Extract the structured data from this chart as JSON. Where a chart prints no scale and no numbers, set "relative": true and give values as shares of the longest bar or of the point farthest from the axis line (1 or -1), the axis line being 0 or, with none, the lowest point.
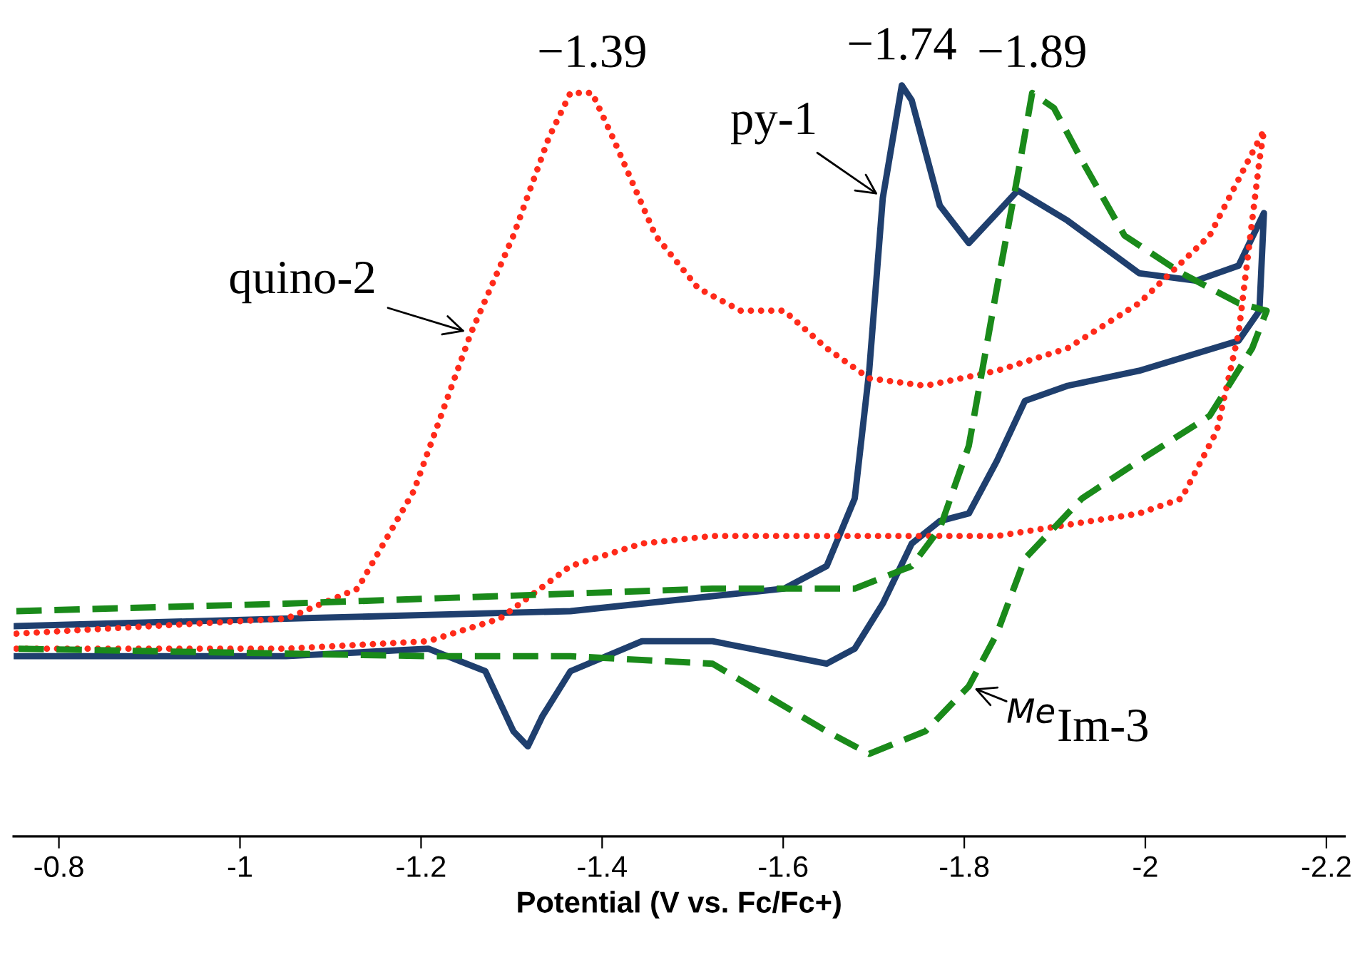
{
  "chart_data": {
    "type": "line",
    "relative": true,
    "xlabel": "Potential (V vs. Fc/Fc+)",
    "xlim": [
      -0.75,
      -2.22
    ],
    "xticks": [
      -0.8,
      -1,
      -1.2,
      -1.4,
      -1.6,
      -1.8,
      -2,
      -2.2
    ],
    "tick_labels": "x",
    "grid": false,
    "legend": false,
    "marker": "none",
    "series": [
      {
        "name": "py-1",
        "color": "#1f3f6e",
        "line_style": "solid",
        "x": [
          -0.753,
          -1.051,
          -1.365,
          -1.601,
          -1.648,
          -1.679,
          -1.695,
          -1.71,
          -1.731,
          -1.742,
          -1.773,
          -1.805,
          -1.836,
          -1.859,
          -1.914,
          -1.993,
          -2.056,
          -2.103,
          -2.131,
          -2.126,
          -2.103,
          -1.993,
          -1.914,
          -1.867,
          -1.836,
          -1.805,
          -1.773,
          -1.742,
          -1.71,
          -1.679,
          -1.648,
          -1.522,
          -1.444,
          -1.365,
          -1.334,
          -1.318,
          -1.302,
          -1.271,
          -1.208,
          -1.051,
          -0.753
        ],
        "values": [
          0.28,
          0.29,
          0.3,
          0.33,
          0.36,
          0.45,
          0.62,
          0.85,
          1.0,
          0.98,
          0.84,
          0.79,
          0.83,
          0.86,
          0.82,
          0.75,
          0.74,
          0.76,
          0.83,
          0.7,
          0.66,
          0.62,
          0.6,
          0.58,
          0.5,
          0.43,
          0.42,
          0.39,
          0.31,
          0.25,
          0.23,
          0.26,
          0.26,
          0.22,
          0.16,
          0.12,
          0.14,
          0.22,
          0.25,
          0.24,
          0.24
        ]
      },
      {
        "name": "quino-2",
        "color": "#ff2a1a",
        "line_style": "dotted",
        "x": [
          -0.753,
          -1.051,
          -1.13,
          -1.192,
          -1.255,
          -1.302,
          -1.341,
          -1.365,
          -1.389,
          -1.412,
          -1.459,
          -1.506,
          -1.553,
          -1.601,
          -1.648,
          -1.695,
          -1.757,
          -1.836,
          -1.914,
          -1.993,
          -2.071,
          -2.118,
          -2.131,
          -2.126,
          -2.103,
          -2.079,
          -2.04,
          -1.993,
          -1.836,
          -1.679,
          -1.522,
          -1.444,
          -1.365,
          -1.287,
          -1.208,
          -1.051,
          -0.753
        ],
        "values": [
          0.27,
          0.29,
          0.33,
          0.46,
          0.67,
          0.8,
          0.93,
          0.99,
          0.99,
          0.93,
          0.8,
          0.73,
          0.7,
          0.7,
          0.65,
          0.61,
          0.6,
          0.62,
          0.65,
          0.71,
          0.8,
          0.91,
          0.94,
          0.9,
          0.67,
          0.54,
          0.45,
          0.43,
          0.4,
          0.4,
          0.4,
          0.39,
          0.36,
          0.29,
          0.26,
          0.25,
          0.25
        ]
      },
      {
        "name": "$^{Me}$Im-3",
        "color": "#1a8a1a",
        "line_style": "dashed",
        "x": [
          -0.753,
          -1.051,
          -1.522,
          -1.679,
          -1.742,
          -1.773,
          -1.805,
          -1.836,
          -1.859,
          -1.875,
          -1.899,
          -1.93,
          -1.977,
          -2.04,
          -2.103,
          -2.134,
          -2.118,
          -2.071,
          -1.993,
          -1.93,
          -1.867,
          -1.836,
          -1.805,
          -1.757,
          -1.695,
          -1.648,
          -1.522,
          -1.365,
          -1.208,
          -0.753
        ],
        "values": [
          0.3,
          0.31,
          0.33,
          0.33,
          0.36,
          0.41,
          0.52,
          0.73,
          0.88,
          0.99,
          0.97,
          0.9,
          0.8,
          0.75,
          0.71,
          0.7,
          0.65,
          0.56,
          0.5,
          0.45,
          0.37,
          0.27,
          0.2,
          0.14,
          0.11,
          0.14,
          0.23,
          0.24,
          0.24,
          0.25
        ]
      }
    ],
    "annotations": [
      {
        "text": "−1.39",
        "x": -1.389,
        "y": 0.99
      },
      {
        "text": "−1.74",
        "x": -1.731,
        "y": 1.0
      },
      {
        "text": "−1.89",
        "x": -1.875,
        "y": 0.99
      }
    ]
  }
}
